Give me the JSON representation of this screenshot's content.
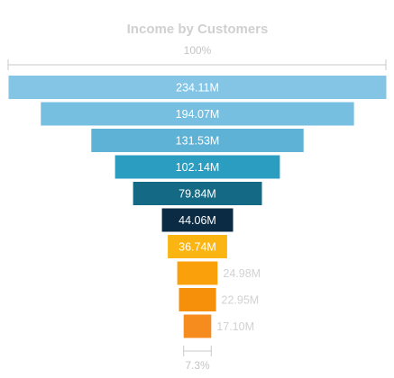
{
  "chart_data": {
    "type": "funnel",
    "title": "Income by Customers",
    "top_percent_label": "100%",
    "bottom_percent_label": "7.3%",
    "values": [
      234.11,
      194.07,
      131.53,
      102.14,
      79.84,
      44.06,
      36.74,
      24.98,
      22.95,
      17.1
    ],
    "value_labels": [
      "234.11M",
      "194.07M",
      "131.53M",
      "102.14M",
      "79.84M",
      "44.06M",
      "36.74M",
      "24.98M",
      "22.95M",
      "17.10M"
    ],
    "colors": [
      "#84c5e6",
      "#76bfe0",
      "#5eb2d5",
      "#2a9dc0",
      "#146a85",
      "#0b2a43",
      "#fbb513",
      "#f9a00b",
      "#f6900b",
      "#f68b1e"
    ],
    "unit": "M"
  }
}
